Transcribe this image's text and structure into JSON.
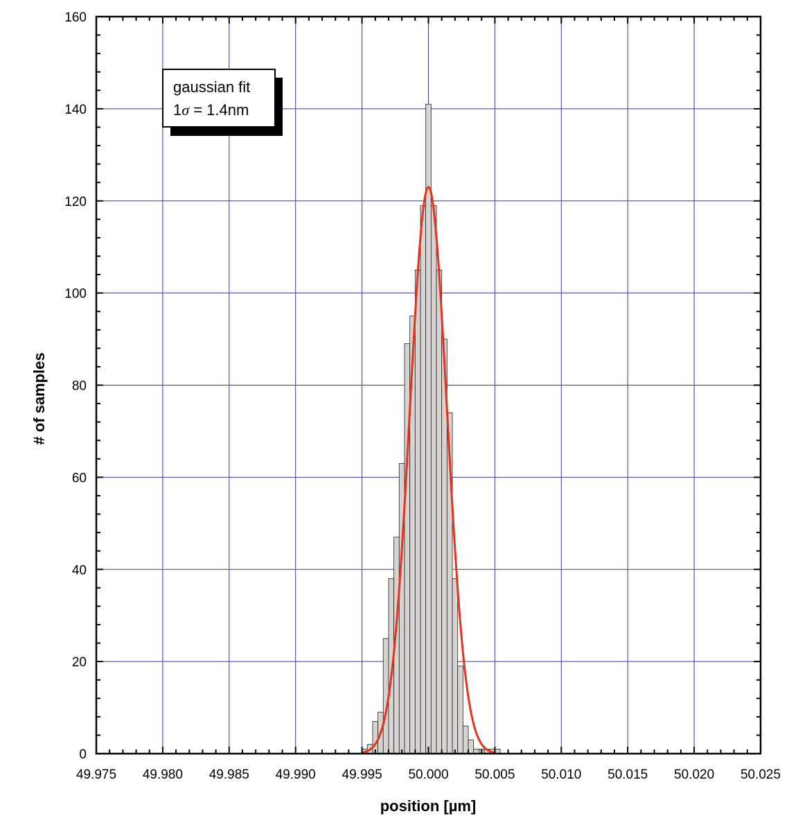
{
  "chart_data": {
    "type": "bar",
    "xlabel": "position  [µm]",
    "ylabel": "# of samples",
    "xlim": [
      49.975,
      50.025
    ],
    "ylim": [
      0,
      160
    ],
    "x_ticks": [
      "49.975",
      "49.980",
      "49.985",
      "49.990",
      "49.995",
      "50.000",
      "50.005",
      "50.010",
      "50.015",
      "50.020",
      "50.025"
    ],
    "y_ticks": [
      "0",
      "20",
      "40",
      "60",
      "80",
      "100",
      "120",
      "140",
      "160"
    ],
    "grid": true,
    "bin_width": 0.0004,
    "histogram": {
      "bin_centers": [
        49.9952,
        49.9956,
        49.996,
        49.9964,
        49.9968,
        49.9972,
        49.9976,
        49.998,
        49.9984,
        49.9988,
        49.9992,
        49.9996,
        50.0,
        50.0004,
        50.0008,
        50.0012,
        50.0016,
        50.002,
        50.0024,
        50.0028,
        50.0032,
        50.0036,
        50.004,
        50.0044,
        50.0048,
        50.0052
      ],
      "counts": [
        1,
        2,
        7,
        9,
        25,
        38,
        47,
        63,
        89,
        95,
        105,
        119,
        141,
        119,
        105,
        90,
        74,
        38,
        19,
        6,
        3,
        1,
        1,
        1,
        1,
        1
      ]
    },
    "fit": {
      "name": "gaussian fit",
      "mean": 50.0,
      "sigma_um": 0.0014,
      "amplitude": 123,
      "color": "#e8321e"
    },
    "annotation": {
      "line1": "gaussian fit",
      "line2_prefix": "1",
      "line2_symbol": "σ",
      "line2_suffix": " = 1.4nm"
    },
    "colors": {
      "bar_fill": "#d7d3d1",
      "bar_stroke": "#202020",
      "grid": "#3a3a90",
      "axis": "#000000"
    }
  }
}
